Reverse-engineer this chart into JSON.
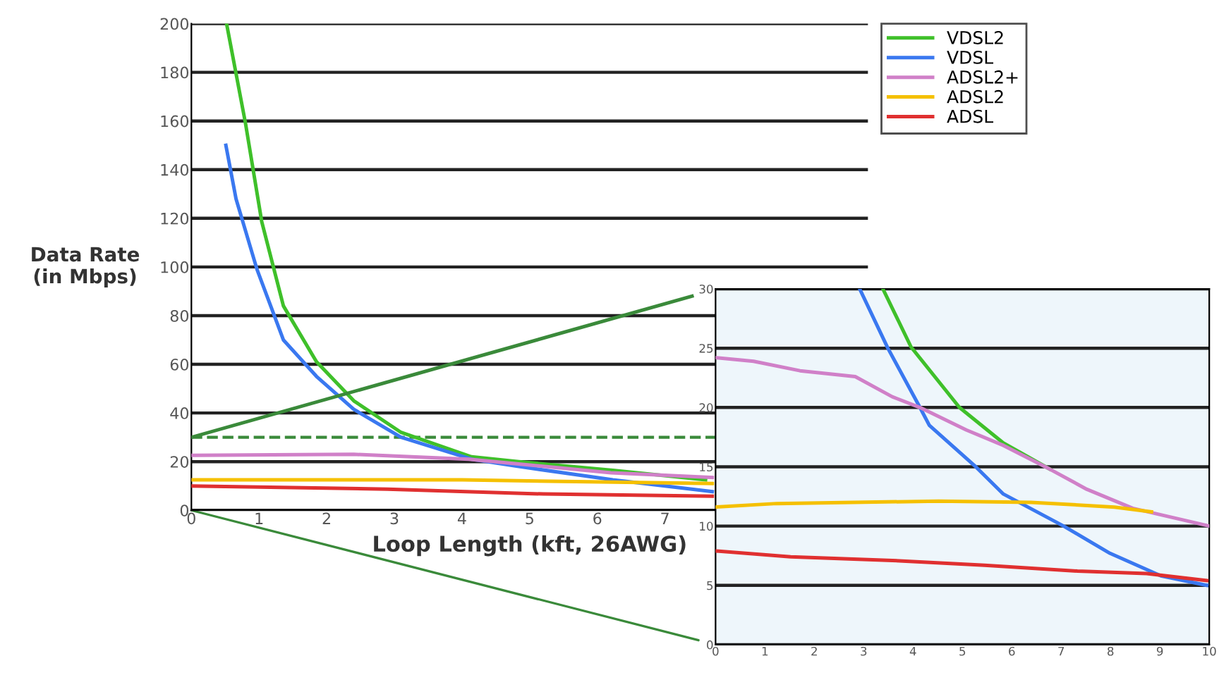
{
  "chart_data": [
    {
      "type": "line",
      "xlabel": "Loop Length (kft, 26AWG)",
      "ylabel": "Data Rate\n(in Mbps)",
      "xlim": [
        0,
        10
      ],
      "xticks": [
        0,
        1,
        2,
        3,
        4,
        5,
        6,
        7
      ],
      "ylim": [
        0,
        200
      ],
      "yticks": [
        0,
        20,
        40,
        60,
        80,
        100,
        120,
        140,
        160,
        180,
        200
      ],
      "grid": "y",
      "legend": "top right",
      "marker": "none",
      "line_style": "solid",
      "ref_lines": [
        {
          "axis": "y",
          "value": 30,
          "color": "#3a8a3a",
          "line_style": "dashed"
        }
      ],
      "series": [
        {
          "name": "VDSL2",
          "color": "#3fc02a",
          "x": [
            0.52,
            0.8,
            1.04,
            1.36,
            1.85,
            2.4,
            3.1,
            4.14,
            4.84,
            6.23,
            7.6
          ],
          "values": [
            200,
            159,
            118.6,
            84,
            61,
            45,
            32,
            22,
            20,
            16.4,
            12.5
          ]
        },
        {
          "name": "VDSL",
          "color": "#3a78f0",
          "x": [
            0.51,
            0.66,
            0.97,
            1.36,
            1.85,
            2.4,
            3.1,
            4.14,
            4.84,
            6.23,
            7.7
          ],
          "values": [
            150,
            128,
            99,
            70,
            55,
            41.5,
            30,
            21,
            18,
            12.5,
            7.7
          ]
        },
        {
          "name": "ADSL2+",
          "color": "#d080c8",
          "x": [
            0,
            2.4,
            4.1,
            6.2,
            7.7
          ],
          "values": [
            22.6,
            23,
            21,
            15.4,
            13.5
          ]
        },
        {
          "name": "ADSL2",
          "color": "#f5c000",
          "x": [
            0,
            4,
            7.7
          ],
          "values": [
            12.5,
            12.5,
            11
          ]
        },
        {
          "name": "ADSL",
          "color": "#e03030",
          "x": [
            0,
            2.9,
            5.2,
            7.7
          ],
          "values": [
            10,
            8.7,
            6.7,
            5.8
          ]
        },
        {
          "color": "#3a8a3a",
          "x": [
            0,
            7.4
          ],
          "values": [
            30,
            88
          ]
        }
      ]
    },
    {
      "type": "line",
      "xlim": [
        0,
        10
      ],
      "xticks": [
        0,
        1,
        2,
        3,
        4,
        5,
        6,
        7,
        8,
        9,
        10
      ],
      "ylim": [
        0,
        30
      ],
      "yticks": [
        0,
        5,
        10,
        15,
        20,
        25,
        30
      ],
      "grid": "y",
      "marker": "none",
      "line_style": "solid",
      "series": [
        {
          "color": "#3fc02a",
          "x": [
            3.39,
            3.96,
            4.94,
            5.83,
            6.77
          ],
          "values": [
            30,
            25.1,
            20,
            17,
            14.8
          ]
        },
        {
          "color": "#3a78f0",
          "x": [
            2.92,
            3.49,
            4.14,
            4.33,
            5.27,
            5.83,
            7.05,
            7.99,
            9.02,
            9.95
          ],
          "values": [
            30,
            25,
            20,
            18.5,
            15,
            12.7,
            10,
            7.7,
            5.8,
            5
          ]
        },
        {
          "color": "#d080c8",
          "x": [
            0,
            0.77,
            1.71,
            2.83,
            3.58,
            4.14,
            5.08,
            5.83,
            6.77,
            7.52,
            8.45,
            10
          ],
          "values": [
            24.2,
            23.9,
            23.1,
            22.6,
            20.9,
            20,
            18.1,
            16.8,
            14.8,
            13.1,
            11.5,
            10
          ]
        },
        {
          "color": "#f5c000",
          "x": [
            0,
            1.24,
            4.52,
            6.39,
            8.08,
            8.83
          ],
          "values": [
            11.6,
            11.9,
            12.1,
            12,
            11.6,
            11.2
          ]
        },
        {
          "color": "#e03030",
          "x": [
            0,
            1.52,
            3.58,
            5.45,
            7.33,
            8.73,
            9.95
          ],
          "values": [
            7.9,
            7.4,
            7.1,
            6.7,
            6.2,
            6.0,
            5.4
          ]
        }
      ]
    }
  ]
}
